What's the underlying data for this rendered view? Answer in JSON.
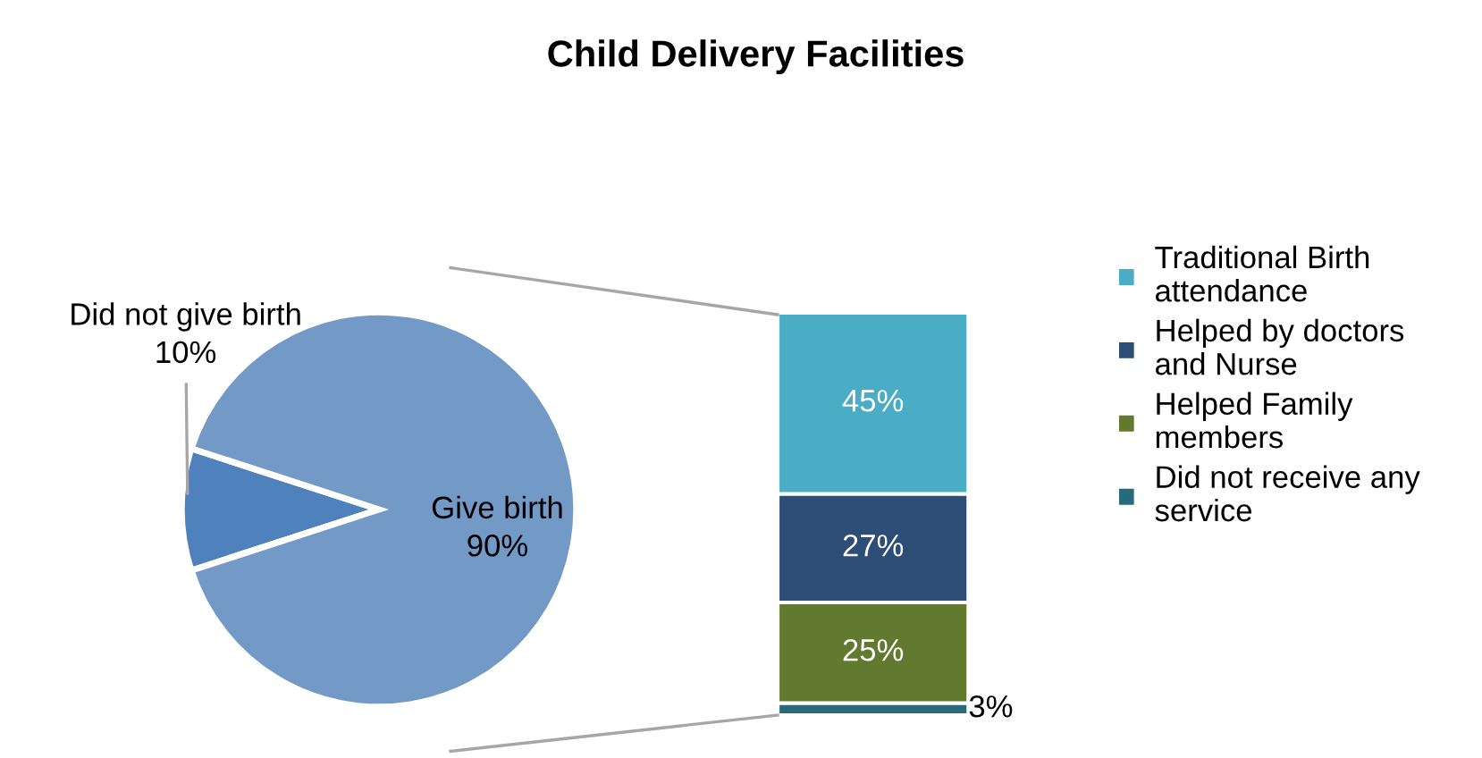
{
  "chart_data": [
    {
      "type": "pie",
      "title": "Child Delivery Facilities",
      "categories": [
        "Did not give birth",
        "Give birth"
      ],
      "values": [
        10,
        90
      ],
      "colors": [
        "#4f81bd",
        "#7399c6"
      ],
      "value_labels": [
        "10%",
        "90%"
      ]
    },
    {
      "type": "bar",
      "stacked": true,
      "categories": [
        null
      ],
      "legend": "right",
      "series": [
        {
          "name": "Did not receive any service",
          "color": "#276a7c",
          "values": [
            3
          ],
          "value_labels": [
            "3%"
          ]
        },
        {
          "name": "Helped Family members",
          "color": "#617a30",
          "values": [
            25
          ],
          "value_labels": [
            "25%"
          ]
        },
        {
          "name": "Helped by doctors and Nurse",
          "color": "#2c4d75",
          "values": [
            27
          ],
          "value_labels": [
            "27%"
          ]
        },
        {
          "name": "Traditional Birth attendance",
          "color": "#4bacc6",
          "values": [
            45
          ],
          "value_labels": [
            "45%"
          ]
        }
      ]
    }
  ]
}
